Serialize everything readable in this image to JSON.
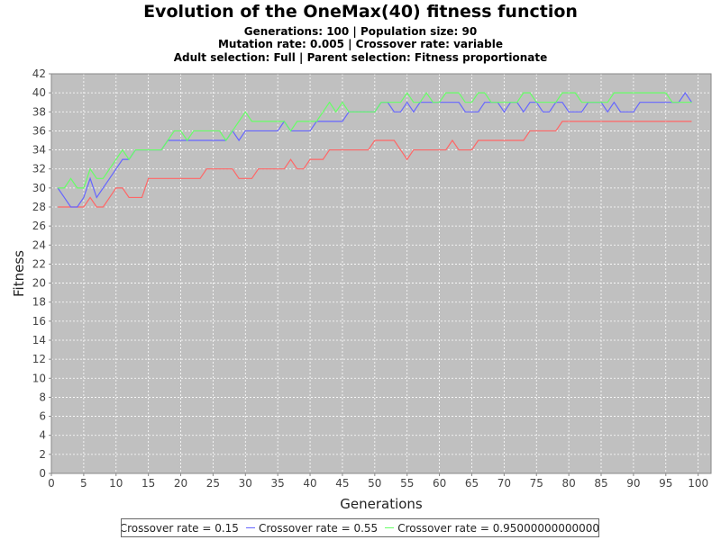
{
  "chart_data": {
    "type": "line",
    "title": "Evolution of the OneMax(40) fitness function",
    "subtitles": [
      "Generations: 100 | Population size: 90",
      "Mutation rate: 0.005 | Crossover rate: variable",
      "Adult selection: Full | Parent selection: Fitness proportionate"
    ],
    "xlabel": "Generations",
    "ylabel": "Fitness",
    "xlim": [
      0,
      102
    ],
    "ylim": [
      0,
      42
    ],
    "xticks": [
      0,
      5,
      10,
      15,
      20,
      25,
      30,
      35,
      40,
      45,
      50,
      55,
      60,
      65,
      70,
      75,
      80,
      85,
      90,
      95,
      100
    ],
    "yticks": [
      0,
      2,
      4,
      6,
      8,
      10,
      12,
      14,
      16,
      18,
      20,
      22,
      24,
      26,
      28,
      30,
      32,
      34,
      36,
      38,
      40,
      42
    ],
    "grid": true,
    "legend_position": "bottom",
    "background_color": "#c0c0c0",
    "grid_color": "#ffffff",
    "x": [
      1,
      2,
      3,
      4,
      5,
      6,
      7,
      8,
      9,
      10,
      11,
      12,
      13,
      14,
      15,
      16,
      17,
      18,
      19,
      20,
      21,
      22,
      23,
      24,
      25,
      26,
      27,
      28,
      29,
      30,
      31,
      32,
      33,
      34,
      35,
      36,
      37,
      38,
      39,
      40,
      41,
      42,
      43,
      44,
      45,
      46,
      47,
      48,
      49,
      50,
      51,
      52,
      53,
      54,
      55,
      56,
      57,
      58,
      59,
      60,
      61,
      62,
      63,
      64,
      65,
      66,
      67,
      68,
      69,
      70,
      71,
      72,
      73,
      74,
      75,
      76,
      77,
      78,
      79,
      80,
      81,
      82,
      83,
      84,
      85,
      86,
      87,
      88,
      89,
      90,
      91,
      92,
      93,
      94,
      95,
      96,
      97,
      98,
      99
    ],
    "series": [
      {
        "name": "Crossover rate = 0.15",
        "color": "#ff6666",
        "values": [
          28,
          28,
          28,
          28,
          28,
          29,
          28,
          28,
          29,
          30,
          30,
          29,
          29,
          29,
          31,
          31,
          31,
          31,
          31,
          31,
          31,
          31,
          31,
          32,
          32,
          32,
          32,
          32,
          31,
          31,
          31,
          32,
          32,
          32,
          32,
          32,
          33,
          32,
          32,
          33,
          33,
          33,
          34,
          34,
          34,
          34,
          34,
          34,
          34,
          35,
          35,
          35,
          35,
          34,
          33,
          34,
          34,
          34,
          34,
          34,
          34,
          35,
          34,
          34,
          34,
          35,
          35,
          35,
          35,
          35,
          35,
          35,
          35,
          36,
          36,
          36,
          36,
          36,
          37,
          37,
          37,
          37,
          37,
          37,
          37,
          37,
          37,
          37,
          37,
          37,
          37,
          37,
          37,
          37,
          37,
          37,
          37,
          37,
          37
        ]
      },
      {
        "name": "Crossover rate = 0.55",
        "color": "#6666ff",
        "values": [
          30,
          29,
          28,
          28,
          29,
          31,
          29,
          30,
          31,
          32,
          33,
          33,
          34,
          34,
          34,
          34,
          34,
          35,
          35,
          35,
          35,
          35,
          35,
          35,
          35,
          35,
          35,
          36,
          35,
          36,
          36,
          36,
          36,
          36,
          36,
          37,
          36,
          36,
          36,
          36,
          37,
          37,
          37,
          37,
          37,
          38,
          38,
          38,
          38,
          38,
          39,
          39,
          38,
          38,
          39,
          38,
          39,
          39,
          39,
          39,
          39,
          39,
          39,
          38,
          38,
          38,
          39,
          39,
          39,
          38,
          39,
          39,
          38,
          39,
          39,
          38,
          38,
          39,
          39,
          38,
          38,
          38,
          39,
          39,
          39,
          38,
          39,
          38,
          38,
          38,
          39,
          39,
          39,
          39,
          39,
          39,
          39,
          40,
          39
        ]
      },
      {
        "name": "Crossover rate = 0.9500000000000001",
        "color": "#66ff66",
        "values": [
          30,
          30,
          31,
          30,
          30,
          32,
          31,
          31,
          32,
          33,
          34,
          33,
          34,
          34,
          34,
          34,
          34,
          35,
          36,
          36,
          35,
          36,
          36,
          36,
          36,
          36,
          35,
          36,
          37,
          38,
          37,
          37,
          37,
          37,
          37,
          37,
          36,
          37,
          37,
          37,
          37,
          38,
          39,
          38,
          39,
          38,
          38,
          38,
          38,
          38,
          39,
          39,
          39,
          39,
          40,
          39,
          39,
          40,
          39,
          39,
          40,
          40,
          40,
          39,
          39,
          40,
          40,
          39,
          39,
          39,
          39,
          39,
          40,
          40,
          39,
          39,
          39,
          39,
          40,
          40,
          40,
          39,
          39,
          39,
          39,
          39,
          40,
          40,
          40,
          40,
          40,
          40,
          40,
          40,
          40,
          39,
          39,
          39,
          39
        ]
      }
    ]
  }
}
